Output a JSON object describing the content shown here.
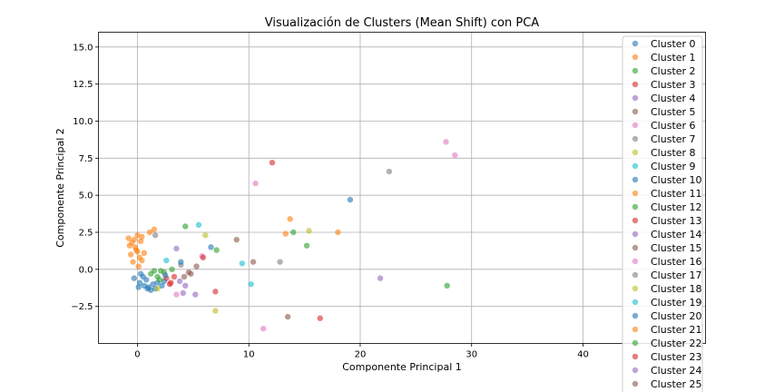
{
  "chart_data": {
    "type": "scatter",
    "title": "Visualización de Clusters (Mean Shift) con PCA",
    "xlabel": "Componente Principal 1",
    "ylabel": "Componente Principal 2",
    "xlim": [
      -3.5,
      51
    ],
    "ylim": [
      -5.0,
      16.0
    ],
    "x_ticks": [
      0,
      10,
      20,
      30,
      40
    ],
    "y_ticks": [
      -2.5,
      0.0,
      2.5,
      5.0,
      7.5,
      10.0,
      12.5,
      15.0
    ],
    "x_tick_labels": [
      "0",
      "10",
      "20",
      "30",
      "40"
    ],
    "y_tick_labels": [
      "−2.5",
      "0.0",
      "2.5",
      "5.0",
      "7.5",
      "10.0",
      "12.5",
      "15.0"
    ],
    "grid": true,
    "legend_position": "upper-right",
    "series": [
      {
        "name": "Cluster 0",
        "color": "#1f77b4",
        "points": [
          [
            -0.3,
            -0.6
          ],
          [
            0.2,
            -0.9
          ],
          [
            0.6,
            -1.1
          ],
          [
            1.0,
            -1.2
          ],
          [
            1.4,
            -1.0
          ],
          [
            0.8,
            -0.7
          ],
          [
            0.3,
            -0.3
          ],
          [
            1.8,
            -0.9
          ],
          [
            2.2,
            -1.1
          ],
          [
            0.1,
            -1.2
          ],
          [
            1.2,
            -1.4
          ],
          [
            1.6,
            -1.3
          ],
          [
            0.5,
            -0.5
          ],
          [
            2.4,
            -0.8
          ],
          [
            0.9,
            -1.3
          ]
        ]
      },
      {
        "name": "Cluster 1",
        "color": "#ff7f0e",
        "points": [
          [
            -0.8,
            2.1
          ],
          [
            -0.5,
            1.8
          ],
          [
            -0.2,
            1.5
          ],
          [
            0.0,
            1.2
          ],
          [
            -0.6,
            1.0
          ],
          [
            0.2,
            0.8
          ],
          [
            -0.4,
            0.5
          ],
          [
            0.1,
            0.2
          ],
          [
            -0.7,
            1.6
          ],
          [
            0.3,
            1.9
          ],
          [
            -0.3,
            2.0
          ],
          [
            0.4,
            0.6
          ],
          [
            -0.1,
            1.3
          ],
          [
            0.0,
            2.3
          ],
          [
            0.6,
            1.1
          ]
        ]
      },
      {
        "name": "Cluster 2",
        "color": "#2ca02c",
        "points": [
          [
            1.2,
            -0.3
          ],
          [
            1.8,
            -0.5
          ],
          [
            2.4,
            -0.2
          ],
          [
            2.0,
            -0.7
          ],
          [
            1.5,
            -0.1
          ]
        ]
      },
      {
        "name": "Cluster 3",
        "color": "#d62728",
        "points": [
          [
            2.6,
            -0.6
          ],
          [
            3.0,
            -0.9
          ],
          [
            3.3,
            -0.5
          ]
        ]
      },
      {
        "name": "Cluster 4",
        "color": "#9467bd",
        "points": [
          [
            3.8,
            -0.8
          ],
          [
            4.3,
            -1.1
          ]
        ]
      },
      {
        "name": "Cluster 5",
        "color": "#8c564b",
        "points": [
          [
            4.2,
            -0.5
          ],
          [
            4.8,
            -0.3
          ]
        ]
      },
      {
        "name": "Cluster 6",
        "color": "#e377c2",
        "points": [
          [
            3.5,
            -1.7
          ],
          [
            5.8,
            0.9
          ]
        ]
      },
      {
        "name": "Cluster 7",
        "color": "#7f7f7f",
        "points": [
          [
            1.6,
            2.3
          ],
          [
            3.9,
            0.3
          ]
        ]
      },
      {
        "name": "Cluster 8",
        "color": "#bcbd22",
        "points": [
          [
            1.8,
            -1.3
          ],
          [
            6.1,
            2.3
          ]
        ]
      },
      {
        "name": "Cluster 9",
        "color": "#17becf",
        "points": [
          [
            2.6,
            0.6
          ],
          [
            5.5,
            3.0
          ]
        ]
      },
      {
        "name": "Cluster 10",
        "color": "#1f77b4",
        "points": [
          [
            19.1,
            4.7
          ],
          [
            6.6,
            1.5
          ]
        ]
      },
      {
        "name": "Cluster 11",
        "color": "#ff7f0e",
        "points": [
          [
            13.7,
            3.4
          ],
          [
            18.0,
            2.5
          ],
          [
            13.3,
            2.4
          ],
          [
            1.5,
            2.7
          ]
        ]
      },
      {
        "name": "Cluster 12",
        "color": "#2ca02c",
        "points": [
          [
            4.3,
            2.9
          ],
          [
            14.0,
            2.5
          ],
          [
            15.2,
            1.6
          ],
          [
            27.8,
            -1.1
          ],
          [
            7.1,
            1.3
          ]
        ]
      },
      {
        "name": "Cluster 13",
        "color": "#d62728",
        "points": [
          [
            12.1,
            7.2
          ],
          [
            16.4,
            -3.3
          ],
          [
            7.0,
            -1.5
          ]
        ]
      },
      {
        "name": "Cluster 14",
        "color": "#9467bd",
        "points": [
          [
            21.8,
            -0.6
          ],
          [
            3.5,
            1.4
          ]
        ]
      },
      {
        "name": "Cluster 15",
        "color": "#8c564b",
        "points": [
          [
            8.9,
            2.0
          ],
          [
            13.5,
            -3.2
          ],
          [
            10.4,
            0.5
          ]
        ]
      },
      {
        "name": "Cluster 16",
        "color": "#e377c2",
        "points": [
          [
            27.7,
            8.6
          ],
          [
            28.5,
            7.7
          ],
          [
            10.6,
            5.8
          ],
          [
            11.3,
            -4.0
          ]
        ]
      },
      {
        "name": "Cluster 17",
        "color": "#7f7f7f",
        "points": [
          [
            22.6,
            6.6
          ],
          [
            12.8,
            0.5
          ]
        ]
      },
      {
        "name": "Cluster 18",
        "color": "#bcbd22",
        "points": [
          [
            15.4,
            2.6
          ],
          [
            7.0,
            -2.8
          ]
        ]
      },
      {
        "name": "Cluster 19",
        "color": "#17becf",
        "points": [
          [
            9.4,
            0.4
          ],
          [
            10.2,
            -1.0
          ]
        ]
      },
      {
        "name": "Cluster 20",
        "color": "#1f77b4",
        "points": [
          [
            3.9,
            0.5
          ],
          [
            2.5,
            -0.4
          ]
        ]
      },
      {
        "name": "Cluster 21",
        "color": "#ff7f0e",
        "points": [
          [
            1.1,
            2.5
          ],
          [
            0.4,
            2.2
          ]
        ]
      },
      {
        "name": "Cluster 22",
        "color": "#2ca02c",
        "points": [
          [
            2.1,
            -0.1
          ],
          [
            3.1,
            0.0
          ]
        ]
      },
      {
        "name": "Cluster 23",
        "color": "#d62728",
        "points": [
          [
            5.9,
            0.8
          ],
          [
            2.9,
            -1.0
          ]
        ]
      },
      {
        "name": "Cluster 24",
        "color": "#9467bd",
        "points": [
          [
            5.2,
            -1.7
          ],
          [
            4.1,
            -1.6
          ]
        ]
      },
      {
        "name": "Cluster 25",
        "color": "#8c564b",
        "points": [
          [
            5.3,
            0.2
          ],
          [
            4.6,
            -0.2
          ]
        ]
      }
    ]
  }
}
